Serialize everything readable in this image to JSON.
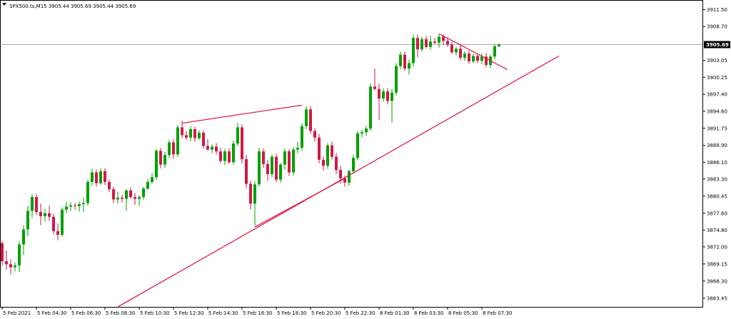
{
  "header": {
    "symbol_text": "SPX500.ts,M15  3905.44 3905.69 3905.44 3905.69",
    "icon": "dropdown-triangle-icon"
  },
  "colors": {
    "bull": "#00a000",
    "bear": "#d01848",
    "doji": "#2244aa",
    "trendline": "#e0204a",
    "grid_border": "#000000",
    "price_line": "#909090",
    "price_tag_bg": "#000000"
  },
  "current_price": {
    "value": 3905.69,
    "label": "3905.69"
  },
  "chart_data": {
    "type": "candlestick",
    "timeframe": "M15",
    "ylim": [
      3862.0,
      3913.0
    ],
    "y_ticks": [
      {
        "value": 3911.5,
        "label": "3911.50"
      },
      {
        "value": 3908.7,
        "label": "3908.70"
      },
      {
        "value": 3903.05,
        "label": "3903.05"
      },
      {
        "value": 3900.25,
        "label": "3900.25"
      },
      {
        "value": 3897.4,
        "label": "3897.40"
      },
      {
        "value": 3894.6,
        "label": "3894.60"
      },
      {
        "value": 3891.75,
        "label": "3891.75"
      },
      {
        "value": 3888.9,
        "label": "3888.90"
      },
      {
        "value": 3886.1,
        "label": "3886.10"
      },
      {
        "value": 3883.3,
        "label": "3883.30"
      },
      {
        "value": 3880.45,
        "label": "3880.45"
      },
      {
        "value": 3877.6,
        "label": "3877.60"
      },
      {
        "value": 3874.8,
        "label": "3874.80"
      },
      {
        "value": 3872.0,
        "label": "3872.00"
      },
      {
        "value": 3869.15,
        "label": "3869.15"
      },
      {
        "value": 3866.3,
        "label": "3866.30"
      },
      {
        "value": 3863.45,
        "label": "3863.45"
      }
    ],
    "x_ticks": [
      {
        "index": 0,
        "label": "5 Feb 2021"
      },
      {
        "index": 8,
        "label": "5 Feb 04:30"
      },
      {
        "index": 16,
        "label": "5 Feb 06:30"
      },
      {
        "index": 24,
        "label": "5 Feb 08:30"
      },
      {
        "index": 32,
        "label": "5 Feb 10:30"
      },
      {
        "index": 40,
        "label": "5 Feb 12:30"
      },
      {
        "index": 48,
        "label": "5 Feb 14:30"
      },
      {
        "index": 56,
        "label": "5 Feb 16:30"
      },
      {
        "index": 64,
        "label": "5 Feb 18:30"
      },
      {
        "index": 72,
        "label": "5 Feb 20:30"
      },
      {
        "index": 80,
        "label": "5 Feb 22:30"
      },
      {
        "index": 88,
        "label": "8 Feb 01:30"
      },
      {
        "index": 96,
        "label": "8 Feb 03:30"
      },
      {
        "index": 104,
        "label": "8 Feb 05:30"
      },
      {
        "index": 112,
        "label": "8 Feb 07:30"
      }
    ],
    "candles": [
      {
        "o": 3872.6,
        "h": 3873.0,
        "l": 3868.8,
        "c": 3869.6
      },
      {
        "o": 3869.6,
        "h": 3871.4,
        "l": 3868.2,
        "c": 3869.1
      },
      {
        "o": 3869.1,
        "h": 3869.9,
        "l": 3867.4,
        "c": 3868.6
      },
      {
        "o": 3868.6,
        "h": 3869.4,
        "l": 3867.9,
        "c": 3868.9
      },
      {
        "o": 3868.9,
        "h": 3872.9,
        "l": 3867.8,
        "c": 3872.4
      },
      {
        "o": 3872.4,
        "h": 3875.6,
        "l": 3870.6,
        "c": 3874.9
      },
      {
        "o": 3874.9,
        "h": 3878.8,
        "l": 3873.8,
        "c": 3878.0
      },
      {
        "o": 3878.0,
        "h": 3880.8,
        "l": 3876.9,
        "c": 3880.3
      },
      {
        "o": 3880.3,
        "h": 3880.8,
        "l": 3877.3,
        "c": 3877.8
      },
      {
        "o": 3877.8,
        "h": 3879.2,
        "l": 3875.6,
        "c": 3877.1
      },
      {
        "o": 3877.1,
        "h": 3878.3,
        "l": 3876.2,
        "c": 3877.6
      },
      {
        "o": 3877.6,
        "h": 3878.9,
        "l": 3876.3,
        "c": 3877.0
      },
      {
        "o": 3877.0,
        "h": 3877.5,
        "l": 3874.1,
        "c": 3874.6
      },
      {
        "o": 3874.6,
        "h": 3875.9,
        "l": 3873.1,
        "c": 3874.0
      },
      {
        "o": 3874.0,
        "h": 3878.6,
        "l": 3873.7,
        "c": 3878.2
      },
      {
        "o": 3878.2,
        "h": 3879.5,
        "l": 3877.6,
        "c": 3878.7
      },
      {
        "o": 3878.7,
        "h": 3879.4,
        "l": 3878.0,
        "c": 3878.9
      },
      {
        "o": 3878.9,
        "h": 3879.3,
        "l": 3878.2,
        "c": 3878.8
      },
      {
        "o": 3878.8,
        "h": 3879.5,
        "l": 3877.9,
        "c": 3879.1
      },
      {
        "o": 3879.1,
        "h": 3880.2,
        "l": 3877.8,
        "c": 3879.3
      },
      {
        "o": 3879.3,
        "h": 3883.2,
        "l": 3878.9,
        "c": 3882.8
      },
      {
        "o": 3882.8,
        "h": 3885.0,
        "l": 3882.2,
        "c": 3884.4
      },
      {
        "o": 3884.4,
        "h": 3884.9,
        "l": 3882.0,
        "c": 3882.6
      },
      {
        "o": 3882.6,
        "h": 3885.1,
        "l": 3882.3,
        "c": 3884.6
      },
      {
        "o": 3884.6,
        "h": 3885.1,
        "l": 3882.3,
        "c": 3882.8
      },
      {
        "o": 3882.8,
        "h": 3883.2,
        "l": 3881.1,
        "c": 3881.6
      },
      {
        "o": 3881.6,
        "h": 3882.0,
        "l": 3879.3,
        "c": 3879.9
      },
      {
        "o": 3879.9,
        "h": 3881.2,
        "l": 3879.2,
        "c": 3880.2
      },
      {
        "o": 3880.2,
        "h": 3880.7,
        "l": 3879.4,
        "c": 3880.0
      },
      {
        "o": 3880.0,
        "h": 3881.6,
        "l": 3878.0,
        "c": 3881.4
      },
      {
        "o": 3881.4,
        "h": 3881.9,
        "l": 3880.0,
        "c": 3880.3
      },
      {
        "o": 3880.3,
        "h": 3881.0,
        "l": 3879.0,
        "c": 3880.0
      },
      {
        "o": 3880.0,
        "h": 3880.6,
        "l": 3878.8,
        "c": 3880.3
      },
      {
        "o": 3880.3,
        "h": 3882.0,
        "l": 3879.8,
        "c": 3881.7
      },
      {
        "o": 3881.7,
        "h": 3883.3,
        "l": 3881.5,
        "c": 3882.8
      },
      {
        "o": 3882.8,
        "h": 3884.3,
        "l": 3882.5,
        "c": 3883.6
      },
      {
        "o": 3883.6,
        "h": 3888.3,
        "l": 3883.1,
        "c": 3888.0
      },
      {
        "o": 3888.0,
        "h": 3888.5,
        "l": 3885.1,
        "c": 3885.7
      },
      {
        "o": 3885.7,
        "h": 3887.8,
        "l": 3885.2,
        "c": 3887.3
      },
      {
        "o": 3887.3,
        "h": 3889.8,
        "l": 3886.8,
        "c": 3889.4
      },
      {
        "o": 3889.4,
        "h": 3889.9,
        "l": 3886.7,
        "c": 3887.4
      },
      {
        "o": 3887.4,
        "h": 3892.3,
        "l": 3887.0,
        "c": 3891.9
      },
      {
        "o": 3891.9,
        "h": 3893.0,
        "l": 3890.1,
        "c": 3890.6
      },
      {
        "o": 3890.6,
        "h": 3891.3,
        "l": 3889.8,
        "c": 3890.2
      },
      {
        "o": 3890.2,
        "h": 3892.1,
        "l": 3889.6,
        "c": 3891.6
      },
      {
        "o": 3891.6,
        "h": 3892.0,
        "l": 3889.5,
        "c": 3890.1
      },
      {
        "o": 3890.1,
        "h": 3891.4,
        "l": 3889.8,
        "c": 3891.0
      },
      {
        "o": 3891.0,
        "h": 3891.4,
        "l": 3888.4,
        "c": 3888.8
      },
      {
        "o": 3888.8,
        "h": 3890.0,
        "l": 3888.0,
        "c": 3888.2
      },
      {
        "o": 3888.2,
        "h": 3889.1,
        "l": 3887.6,
        "c": 3888.7
      },
      {
        "o": 3888.7,
        "h": 3889.3,
        "l": 3887.4,
        "c": 3887.9
      },
      {
        "o": 3887.9,
        "h": 3888.5,
        "l": 3885.9,
        "c": 3886.3
      },
      {
        "o": 3886.3,
        "h": 3888.3,
        "l": 3885.6,
        "c": 3887.9
      },
      {
        "o": 3887.9,
        "h": 3888.4,
        "l": 3885.8,
        "c": 3886.1
      },
      {
        "o": 3886.1,
        "h": 3889.7,
        "l": 3885.7,
        "c": 3889.2
      },
      {
        "o": 3889.2,
        "h": 3892.6,
        "l": 3888.8,
        "c": 3891.9
      },
      {
        "o": 3891.9,
        "h": 3892.4,
        "l": 3885.9,
        "c": 3886.6
      },
      {
        "o": 3886.6,
        "h": 3887.3,
        "l": 3881.7,
        "c": 3882.5
      },
      {
        "o": 3882.5,
        "h": 3883.0,
        "l": 3878.2,
        "c": 3879.2
      },
      {
        "o": 3879.2,
        "h": 3882.9,
        "l": 3875.5,
        "c": 3882.4
      },
      {
        "o": 3882.4,
        "h": 3888.5,
        "l": 3882.0,
        "c": 3887.9
      },
      {
        "o": 3887.9,
        "h": 3888.4,
        "l": 3885.2,
        "c": 3885.8
      },
      {
        "o": 3885.8,
        "h": 3886.5,
        "l": 3883.0,
        "c": 3884.1
      },
      {
        "o": 3884.1,
        "h": 3887.4,
        "l": 3883.6,
        "c": 3887.0
      },
      {
        "o": 3887.0,
        "h": 3887.5,
        "l": 3882.8,
        "c": 3883.2
      },
      {
        "o": 3883.2,
        "h": 3886.0,
        "l": 3882.7,
        "c": 3885.7
      },
      {
        "o": 3885.7,
        "h": 3888.4,
        "l": 3884.8,
        "c": 3887.9
      },
      {
        "o": 3887.9,
        "h": 3888.3,
        "l": 3883.8,
        "c": 3884.4
      },
      {
        "o": 3884.4,
        "h": 3888.6,
        "l": 3883.9,
        "c": 3888.2
      },
      {
        "o": 3888.2,
        "h": 3889.5,
        "l": 3887.6,
        "c": 3888.5
      },
      {
        "o": 3888.5,
        "h": 3892.6,
        "l": 3888.0,
        "c": 3892.1
      },
      {
        "o": 3892.1,
        "h": 3895.4,
        "l": 3891.6,
        "c": 3894.9
      },
      {
        "o": 3894.9,
        "h": 3895.4,
        "l": 3890.8,
        "c": 3891.3
      },
      {
        "o": 3891.3,
        "h": 3891.8,
        "l": 3889.5,
        "c": 3890.2
      },
      {
        "o": 3890.2,
        "h": 3890.8,
        "l": 3885.9,
        "c": 3886.5
      },
      {
        "o": 3886.5,
        "h": 3887.1,
        "l": 3884.7,
        "c": 3885.5
      },
      {
        "o": 3885.5,
        "h": 3889.3,
        "l": 3885.0,
        "c": 3888.9
      },
      {
        "o": 3888.9,
        "h": 3889.5,
        "l": 3886.5,
        "c": 3887.0
      },
      {
        "o": 3887.0,
        "h": 3887.6,
        "l": 3884.1,
        "c": 3884.8
      },
      {
        "o": 3884.8,
        "h": 3885.5,
        "l": 3882.5,
        "c": 3883.4
      },
      {
        "o": 3883.4,
        "h": 3883.9,
        "l": 3882.0,
        "c": 3882.7
      },
      {
        "o": 3882.7,
        "h": 3884.9,
        "l": 3882.2,
        "c": 3884.6
      },
      {
        "o": 3884.6,
        "h": 3887.3,
        "l": 3884.2,
        "c": 3886.8
      },
      {
        "o": 3886.8,
        "h": 3891.3,
        "l": 3886.4,
        "c": 3890.9
      },
      {
        "o": 3890.9,
        "h": 3891.5,
        "l": 3890.3,
        "c": 3891.1
      },
      {
        "o": 3891.1,
        "h": 3892.2,
        "l": 3890.5,
        "c": 3891.7
      },
      {
        "o": 3891.7,
        "h": 3899.2,
        "l": 3891.3,
        "c": 3898.7
      },
      {
        "o": 3898.7,
        "h": 3901.7,
        "l": 3898.1,
        "c": 3898.3
      },
      {
        "o": 3898.3,
        "h": 3899.2,
        "l": 3893.1,
        "c": 3896.7
      },
      {
        "o": 3896.7,
        "h": 3898.4,
        "l": 3896.2,
        "c": 3897.9
      },
      {
        "o": 3897.9,
        "h": 3898.4,
        "l": 3895.7,
        "c": 3896.3
      },
      {
        "o": 3896.3,
        "h": 3898.3,
        "l": 3892.7,
        "c": 3897.7
      },
      {
        "o": 3897.7,
        "h": 3902.6,
        "l": 3897.2,
        "c": 3902.1
      },
      {
        "o": 3902.1,
        "h": 3904.5,
        "l": 3901.6,
        "c": 3904.0
      },
      {
        "o": 3904.0,
        "h": 3904.5,
        "l": 3901.3,
        "c": 3901.7
      },
      {
        "o": 3901.7,
        "h": 3903.2,
        "l": 3900.7,
        "c": 3902.6
      },
      {
        "o": 3902.6,
        "h": 3907.3,
        "l": 3902.1,
        "c": 3906.8
      },
      {
        "o": 3906.8,
        "h": 3907.4,
        "l": 3903.6,
        "c": 3904.9
      },
      {
        "o": 3904.9,
        "h": 3907.0,
        "l": 3904.5,
        "c": 3906.6
      },
      {
        "o": 3906.6,
        "h": 3907.1,
        "l": 3905.0,
        "c": 3905.3
      },
      {
        "o": 3905.3,
        "h": 3907.2,
        "l": 3904.8,
        "c": 3906.2
      },
      {
        "o": 3906.2,
        "h": 3906.8,
        "l": 3905.8,
        "c": 3906.0
      },
      {
        "o": 3906.0,
        "h": 3907.4,
        "l": 3905.2,
        "c": 3907.0
      },
      {
        "o": 3907.0,
        "h": 3907.4,
        "l": 3905.6,
        "c": 3906.3
      },
      {
        "o": 3906.3,
        "h": 3906.9,
        "l": 3905.3,
        "c": 3905.7
      },
      {
        "o": 3905.7,
        "h": 3906.2,
        "l": 3904.1,
        "c": 3904.4
      },
      {
        "o": 3904.4,
        "h": 3905.3,
        "l": 3903.9,
        "c": 3905.0
      },
      {
        "o": 3905.0,
        "h": 3905.6,
        "l": 3903.1,
        "c": 3903.5
      },
      {
        "o": 3903.5,
        "h": 3904.6,
        "l": 3903.0,
        "c": 3904.2
      },
      {
        "o": 3904.2,
        "h": 3904.7,
        "l": 3902.5,
        "c": 3902.9
      },
      {
        "o": 3902.9,
        "h": 3904.2,
        "l": 3902.6,
        "c": 3903.8
      },
      {
        "o": 3903.8,
        "h": 3904.1,
        "l": 3902.6,
        "c": 3903.0
      },
      {
        "o": 3903.0,
        "h": 3904.2,
        "l": 3902.4,
        "c": 3903.7
      },
      {
        "o": 3903.7,
        "h": 3904.3,
        "l": 3901.9,
        "c": 3902.3
      },
      {
        "o": 3902.3,
        "h": 3904.0,
        "l": 3901.8,
        "c": 3903.7
      },
      {
        "o": 3903.7,
        "h": 3905.8,
        "l": 3903.2,
        "c": 3905.4
      },
      {
        "o": 3905.4,
        "h": 3905.9,
        "l": 3905.3,
        "c": 3905.69
      }
    ],
    "trendlines": [
      {
        "name": "main-support-trendline",
        "p1": {
          "index": 27,
          "value": 3862.0
        },
        "p2": {
          "index": 130,
          "value": 3903.8
        }
      },
      {
        "name": "lower-support-trendline",
        "p1": {
          "index": 59,
          "value": 3875.3
        },
        "p2": {
          "index": 80,
          "value": 3883.4
        }
      },
      {
        "name": "upper-resistance-trendline",
        "p1": {
          "index": 42,
          "value": 3892.6
        },
        "p2": {
          "index": 70,
          "value": 3895.6
        }
      },
      {
        "name": "descending-wedge-trendline",
        "p1": {
          "index": 102,
          "value": 3907.5
        },
        "p2": {
          "index": 118,
          "value": 3901.5
        }
      }
    ]
  }
}
